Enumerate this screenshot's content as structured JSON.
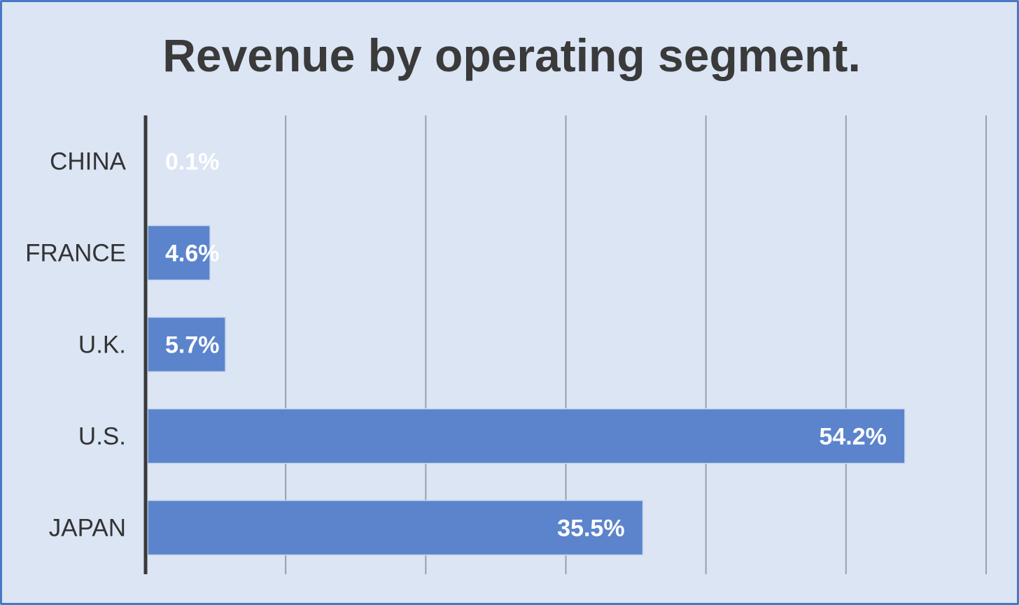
{
  "chart_data": {
    "type": "bar",
    "orientation": "horizontal",
    "title": "Revenue by operating segment.",
    "categories": [
      "CHINA",
      "FRANCE",
      "U.K.",
      "U.S.",
      "JAPAN"
    ],
    "values": [
      0.1,
      4.6,
      5.7,
      54.2,
      35.5
    ],
    "value_labels": [
      "0.1%",
      "4.6%",
      "5.7%",
      "54.2%",
      "35.5%"
    ],
    "xlim": [
      0,
      60
    ],
    "grid": true,
    "legend": "none",
    "bar_color": "#5b84cc",
    "background_color": "#dbe5f4",
    "border_color": "#4a78c8"
  }
}
